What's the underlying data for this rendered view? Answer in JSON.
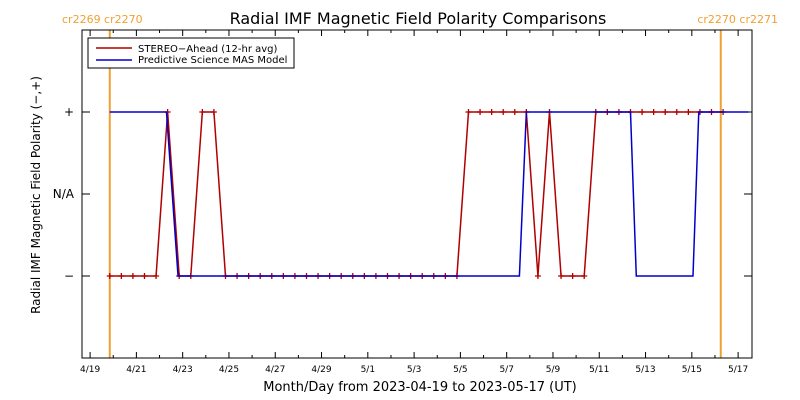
{
  "chart_data": {
    "type": "line",
    "title": "Radial IMF Magnetic Field Polarity Comparisons",
    "xlabel": "Month/Day from 2023-04-19 to 2023-05-17 (UT)",
    "ylabel": "Radial IMF Magnetic Field Polarity (−,+)",
    "x_unit": "days",
    "xlim": [
      -0.35,
      28.6
    ],
    "ylim": [
      -2,
      2
    ],
    "y_ticks": [
      {
        "value": 1,
        "label": "+"
      },
      {
        "value": 0,
        "label": "N/A"
      },
      {
        "value": -1,
        "label": "−"
      }
    ],
    "x_ticks": [
      {
        "value": 0,
        "label": "4/19"
      },
      {
        "value": 2,
        "label": "4/21"
      },
      {
        "value": 4,
        "label": "4/23"
      },
      {
        "value": 6,
        "label": "4/25"
      },
      {
        "value": 8,
        "label": "4/27"
      },
      {
        "value": 10,
        "label": "4/29"
      },
      {
        "value": 12,
        "label": "5/1"
      },
      {
        "value": 14,
        "label": "5/3"
      },
      {
        "value": 16,
        "label": "5/5"
      },
      {
        "value": 18,
        "label": "5/7"
      },
      {
        "value": 20,
        "label": "5/9"
      },
      {
        "value": 22,
        "label": "5/11"
      },
      {
        "value": 24,
        "label": "5/13"
      },
      {
        "value": 26,
        "label": "5/15"
      },
      {
        "value": 28,
        "label": "5/17"
      }
    ],
    "carrington_markers": [
      {
        "x": 0.85,
        "label": "cr2269 cr2270",
        "position": "top-left"
      },
      {
        "x": 27.25,
        "label": "cr2270 cr2271",
        "position": "top-right"
      }
    ],
    "legend": {
      "position": "top-left"
    },
    "series": [
      {
        "name": "STEREO−Ahead (12-hr avg)",
        "color": "#b00000",
        "marker": "plus",
        "x": [
          0.85,
          1.35,
          1.85,
          2.35,
          2.85,
          3.35,
          3.85,
          4.35,
          4.85,
          5.35,
          5.85,
          6.35,
          6.85,
          7.35,
          7.85,
          8.35,
          8.85,
          9.35,
          9.85,
          10.35,
          10.85,
          11.35,
          11.85,
          12.35,
          12.85,
          13.35,
          13.85,
          14.35,
          14.85,
          15.35,
          15.85,
          16.35,
          16.85,
          17.35,
          17.85,
          18.35,
          18.85,
          19.35,
          19.85,
          20.35,
          20.85,
          21.35,
          21.85,
          22.35,
          22.85,
          23.35,
          23.85,
          24.35,
          24.85,
          25.35,
          25.85,
          26.35,
          26.85,
          27.35
        ],
        "y": [
          -1,
          -1,
          -1,
          -1,
          -1,
          1,
          -1,
          -1,
          1,
          1,
          -1,
          -1,
          -1,
          -1,
          -1,
          -1,
          -1,
          -1,
          -1,
          -1,
          -1,
          -1,
          -1,
          -1,
          -1,
          -1,
          -1,
          -1,
          -1,
          -1,
          -1,
          1,
          1,
          1,
          1,
          1,
          1,
          -1,
          1,
          -1,
          -1,
          -1,
          1,
          1,
          1,
          1,
          1,
          1,
          1,
          1,
          1,
          1,
          1,
          1
        ]
      },
      {
        "name": "Predictive Science MAS Model",
        "color": "#0000cc",
        "marker": "none",
        "x": [
          0.85,
          3.3,
          3.8,
          18.55,
          18.85,
          23.35,
          23.6,
          26.05,
          26.3,
          28.45
        ],
        "y": [
          1,
          1,
          -1,
          -1,
          1,
          1,
          -1,
          -1,
          1,
          1
        ]
      }
    ]
  }
}
